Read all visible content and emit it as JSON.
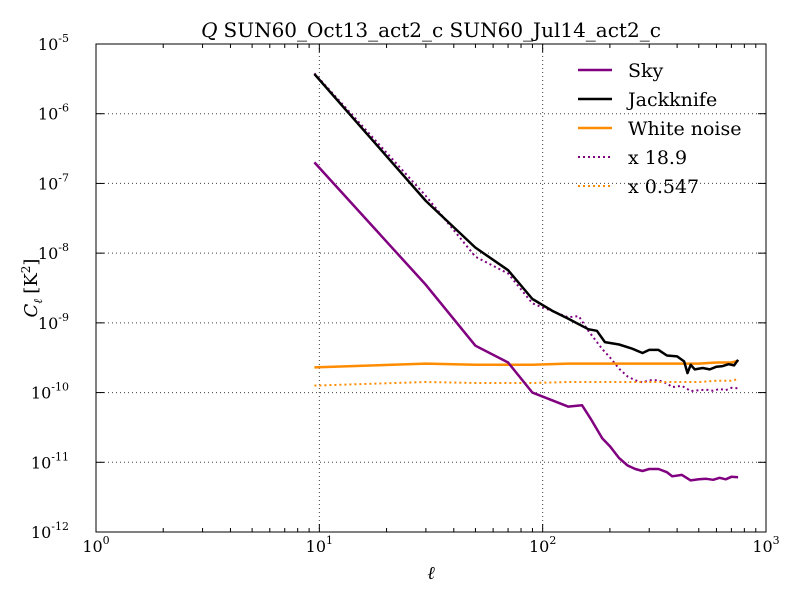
{
  "chart_data": {
    "type": "line",
    "title_symbol": "Q",
    "title": "SUN60_Oct13_act2_c SUN60_Jul14_act2_c",
    "xlabel": "ℓ",
    "ylabel_symbol": "C",
    "ylabel_subscript": "ℓ",
    "ylabel_unit": "[K",
    "ylabel_unit_exp": "2",
    "ylabel_unit_close": "]",
    "x_scale": "log",
    "y_scale": "log",
    "xlim": [
      1,
      1000
    ],
    "ylim": [
      1e-12,
      1e-05
    ],
    "grid": true,
    "legend_position": "top-right",
    "x_ticks": [
      {
        "value": 1,
        "base": "10",
        "exp": "0"
      },
      {
        "value": 10,
        "base": "10",
        "exp": "1"
      },
      {
        "value": 100,
        "base": "10",
        "exp": "2"
      },
      {
        "value": 1000,
        "base": "10",
        "exp": "3"
      }
    ],
    "y_ticks": [
      {
        "value": 1e-12,
        "base": "10",
        "exp": "-12"
      },
      {
        "value": 1e-11,
        "base": "10",
        "exp": "-11"
      },
      {
        "value": 1e-10,
        "base": "10",
        "exp": "-10"
      },
      {
        "value": 1e-09,
        "base": "10",
        "exp": "-9"
      },
      {
        "value": 1e-08,
        "base": "10",
        "exp": "-8"
      },
      {
        "value": 1e-07,
        "base": "10",
        "exp": "-7"
      },
      {
        "value": 1e-06,
        "base": "10",
        "exp": "-6"
      },
      {
        "value": 1e-05,
        "base": "10",
        "exp": "-5"
      }
    ],
    "series": [
      {
        "name": "Sky",
        "color": "#800080",
        "style": "solid",
        "x": [
          9.5,
          30,
          50,
          70,
          90,
          130,
          150,
          165,
          185,
          200,
          220,
          240,
          260,
          280,
          300,
          330,
          360,
          380,
          420,
          460,
          500,
          540,
          580,
          620,
          660,
          700,
          750
        ],
        "y": [
          2e-07,
          3.5e-09,
          4.7e-10,
          2.7e-10,
          1e-10,
          6.3e-11,
          6.6e-11,
          4.1e-11,
          2.2e-11,
          1.7e-11,
          1.15e-11,
          9e-12,
          8e-12,
          7.5e-12,
          8e-12,
          8e-12,
          7.2e-12,
          6.3e-12,
          6.6e-12,
          5.5e-12,
          5.7e-12,
          5.8e-12,
          5.6e-12,
          6e-12,
          5.7e-12,
          6.2e-12,
          6.1e-12
        ]
      },
      {
        "name": "Jackknife",
        "color": "#000000",
        "style": "solid",
        "x": [
          9.5,
          30,
          50,
          70,
          90,
          110,
          130,
          160,
          175,
          190,
          220,
          250,
          280,
          300,
          330,
          360,
          400,
          430,
          445,
          460,
          480,
          520,
          560,
          600,
          640,
          680,
          720,
          750
        ],
        "y": [
          3.7e-06,
          5.6e-08,
          1.2e-08,
          5.7e-09,
          2.2e-09,
          1.5e-09,
          1.15e-09,
          8.1e-10,
          7.7e-10,
          5.3e-10,
          4.9e-10,
          4.3e-10,
          3.7e-10,
          4.1e-10,
          4.1e-10,
          3.4e-10,
          3.3e-10,
          2.8e-10,
          1.9e-10,
          2.5e-10,
          2.15e-10,
          2.25e-10,
          2.15e-10,
          2.35e-10,
          2.4e-10,
          2.55e-10,
          2.45e-10,
          2.95e-10
        ]
      },
      {
        "name": "White noise",
        "color": "#ff8c00",
        "style": "solid",
        "x": [
          9.5,
          30,
          50,
          70,
          90,
          130,
          150,
          200,
          300,
          400,
          500,
          600,
          700,
          750
        ],
        "y": [
          2.3e-10,
          2.6e-10,
          2.5e-10,
          2.5e-10,
          2.5e-10,
          2.6e-10,
          2.6e-10,
          2.6e-10,
          2.6e-10,
          2.6e-10,
          2.6e-10,
          2.7e-10,
          2.7e-10,
          2.85e-10
        ]
      },
      {
        "name": "x 18.9",
        "color": "#800080",
        "style": "dotted",
        "x": [
          9.5,
          30,
          50,
          70,
          90,
          130,
          145,
          160,
          185,
          200,
          220,
          240,
          260,
          280,
          300,
          330,
          360,
          380,
          420,
          460,
          500,
          540,
          580,
          620,
          660,
          700,
          750
        ],
        "y": [
          3.8e-06,
          6.6e-08,
          8.9e-09,
          5.1e-09,
          1.9e-09,
          1.2e-09,
          1.25e-09,
          7.7e-10,
          4.2e-10,
          3.2e-10,
          2.2e-10,
          1.7e-10,
          1.5e-10,
          1.4e-10,
          1.5e-10,
          1.5e-10,
          1.36e-10,
          1.2e-10,
          1.25e-10,
          1.05e-10,
          1.08e-10,
          1.1e-10,
          1.06e-10,
          1.13e-10,
          1.08e-10,
          1.17e-10,
          1.15e-10
        ]
      },
      {
        "name": "x 0.547",
        "color": "#ff8c00",
        "style": "dotted",
        "x": [
          9.5,
          30,
          50,
          70,
          90,
          130,
          150,
          200,
          300,
          400,
          500,
          600,
          700,
          750
        ],
        "y": [
          1.26e-10,
          1.42e-10,
          1.37e-10,
          1.37e-10,
          1.37e-10,
          1.42e-10,
          1.42e-10,
          1.42e-10,
          1.42e-10,
          1.42e-10,
          1.42e-10,
          1.48e-10,
          1.48e-10,
          1.56e-10
        ]
      }
    ]
  }
}
